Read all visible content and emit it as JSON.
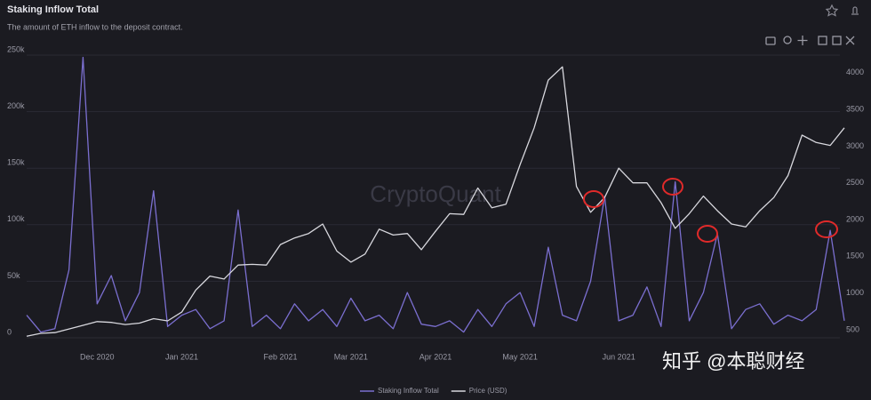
{
  "chart_data": {
    "type": "line",
    "title": "Staking Inflow Total",
    "subtitle": "The amount of ETH inflow to the deposit contract.",
    "watermark": "CryptoQuant",
    "overlay_watermark": "知乎 @本聪财经",
    "categories": [
      null,
      null,
      null,
      null,
      null,
      "Dec 2020",
      null,
      null,
      null,
      null,
      null,
      "Jan 2021",
      null,
      null,
      null,
      null,
      null,
      null,
      "Feb 2021",
      null,
      null,
      null,
      null,
      "Mar 2021",
      null,
      null,
      null,
      null,
      null,
      "Apr 2021",
      null,
      null,
      null,
      null,
      null,
      "May 2021",
      null,
      null,
      null,
      null,
      null,
      null,
      "Jun 2021",
      null,
      null,
      null,
      null,
      null,
      null,
      null,
      null,
      null,
      null,
      null,
      null,
      null,
      null,
      null,
      null
    ],
    "series": [
      {
        "name": "Staking Inflow Total",
        "color": "#7b6fd0",
        "axis": "y",
        "values": [
          20000,
          5000,
          8000,
          60000,
          248000,
          30000,
          55000,
          15000,
          40000,
          130000,
          10000,
          20000,
          25000,
          8000,
          15000,
          113000,
          10000,
          20000,
          8000,
          30000,
          15000,
          25000,
          10000,
          35000,
          15000,
          20000,
          8000,
          40000,
          12000,
          10000,
          15000,
          5000,
          25000,
          10000,
          30000,
          40000,
          10000,
          80000,
          20000,
          15000,
          50000,
          125000,
          15000,
          20000,
          45000,
          10000,
          138000,
          15000,
          40000,
          92000,
          8000,
          25000,
          30000,
          12000,
          20000,
          15000,
          25000,
          95000,
          15000
        ]
      },
      {
        "name": "Price (USD)",
        "color": "#d8d8de",
        "axis": "y2",
        "values": [
          410,
          450,
          460,
          510,
          560,
          610,
          600,
          570,
          590,
          650,
          620,
          740,
          1040,
          1230,
          1190,
          1380,
          1390,
          1380,
          1660,
          1750,
          1810,
          1940,
          1570,
          1420,
          1530,
          1870,
          1790,
          1810,
          1590,
          1840,
          2080,
          2070,
          2430,
          2160,
          2210,
          2750,
          3250,
          3900,
          4080,
          2450,
          2100,
          2300,
          2700,
          2500,
          2500,
          2230,
          1880,
          2080,
          2320,
          2120,
          1940,
          1900,
          2120,
          2300,
          2600,
          3150,
          3050,
          3010,
          3250
        ]
      }
    ],
    "ylim": [
      0,
      250000
    ],
    "yticks": [
      0,
      {
        "value": 50000,
        "label": "50k"
      },
      {
        "value": 100000,
        "label": "100k"
      },
      {
        "value": 150000,
        "label": "150k"
      },
      {
        "value": 200000,
        "label": "200k"
      },
      {
        "value": 250000,
        "label": "250k"
      }
    ],
    "y2lim": [
      390,
      4240
    ],
    "y2ticks": [
      500,
      1000,
      1500,
      2000,
      2500,
      3000,
      3500,
      4000
    ],
    "grid": true,
    "legend": "bottom"
  }
}
